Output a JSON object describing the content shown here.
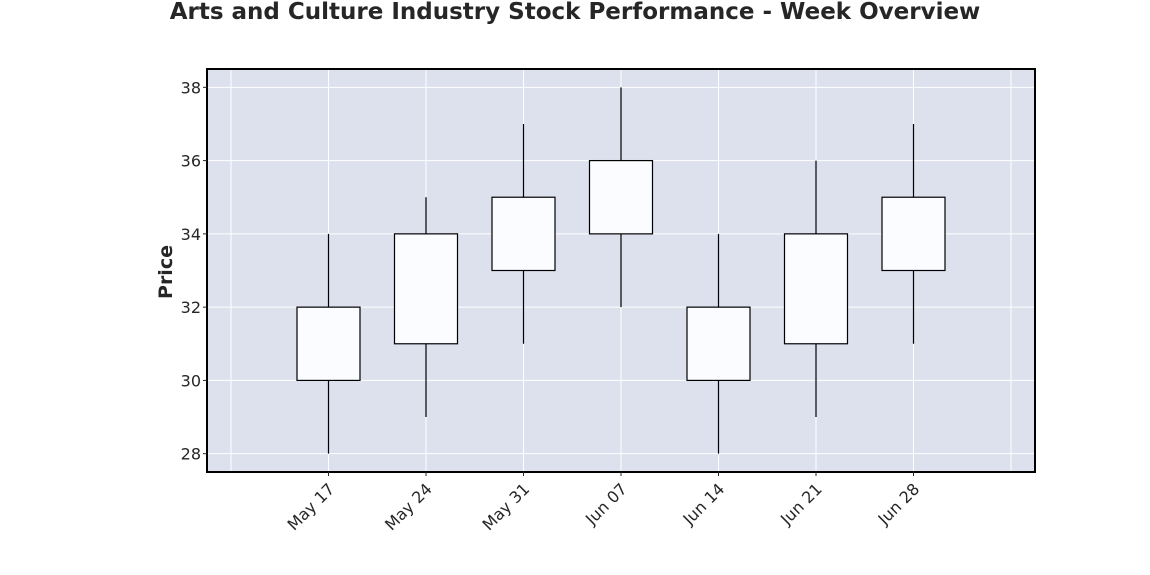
{
  "chart_data": {
    "type": "candlestick",
    "title": "Arts and Culture Industry Stock Performance - Week Overview",
    "xlabel": "",
    "ylabel": "Price",
    "categories": [
      "May 17",
      "May 24",
      "May 31",
      "Jun 07",
      "Jun 14",
      "Jun 21",
      "Jun 28"
    ],
    "open": [
      30,
      31,
      33,
      34,
      30,
      31,
      33
    ],
    "high": [
      34,
      35,
      37,
      38,
      34,
      36,
      37
    ],
    "low": [
      28,
      29,
      31,
      32,
      28,
      29,
      31
    ],
    "close": [
      32,
      34,
      35,
      36,
      32,
      34,
      35
    ],
    "ylim": [
      27.5,
      38.5
    ],
    "yticks": [
      28,
      30,
      32,
      34,
      36,
      38
    ],
    "grid": true,
    "legend": "none",
    "colors": {
      "plot_background": "#dde1ee",
      "grid": "#ffffff",
      "candle_fill": "#fafcff",
      "candle_edge": "#000000"
    }
  }
}
